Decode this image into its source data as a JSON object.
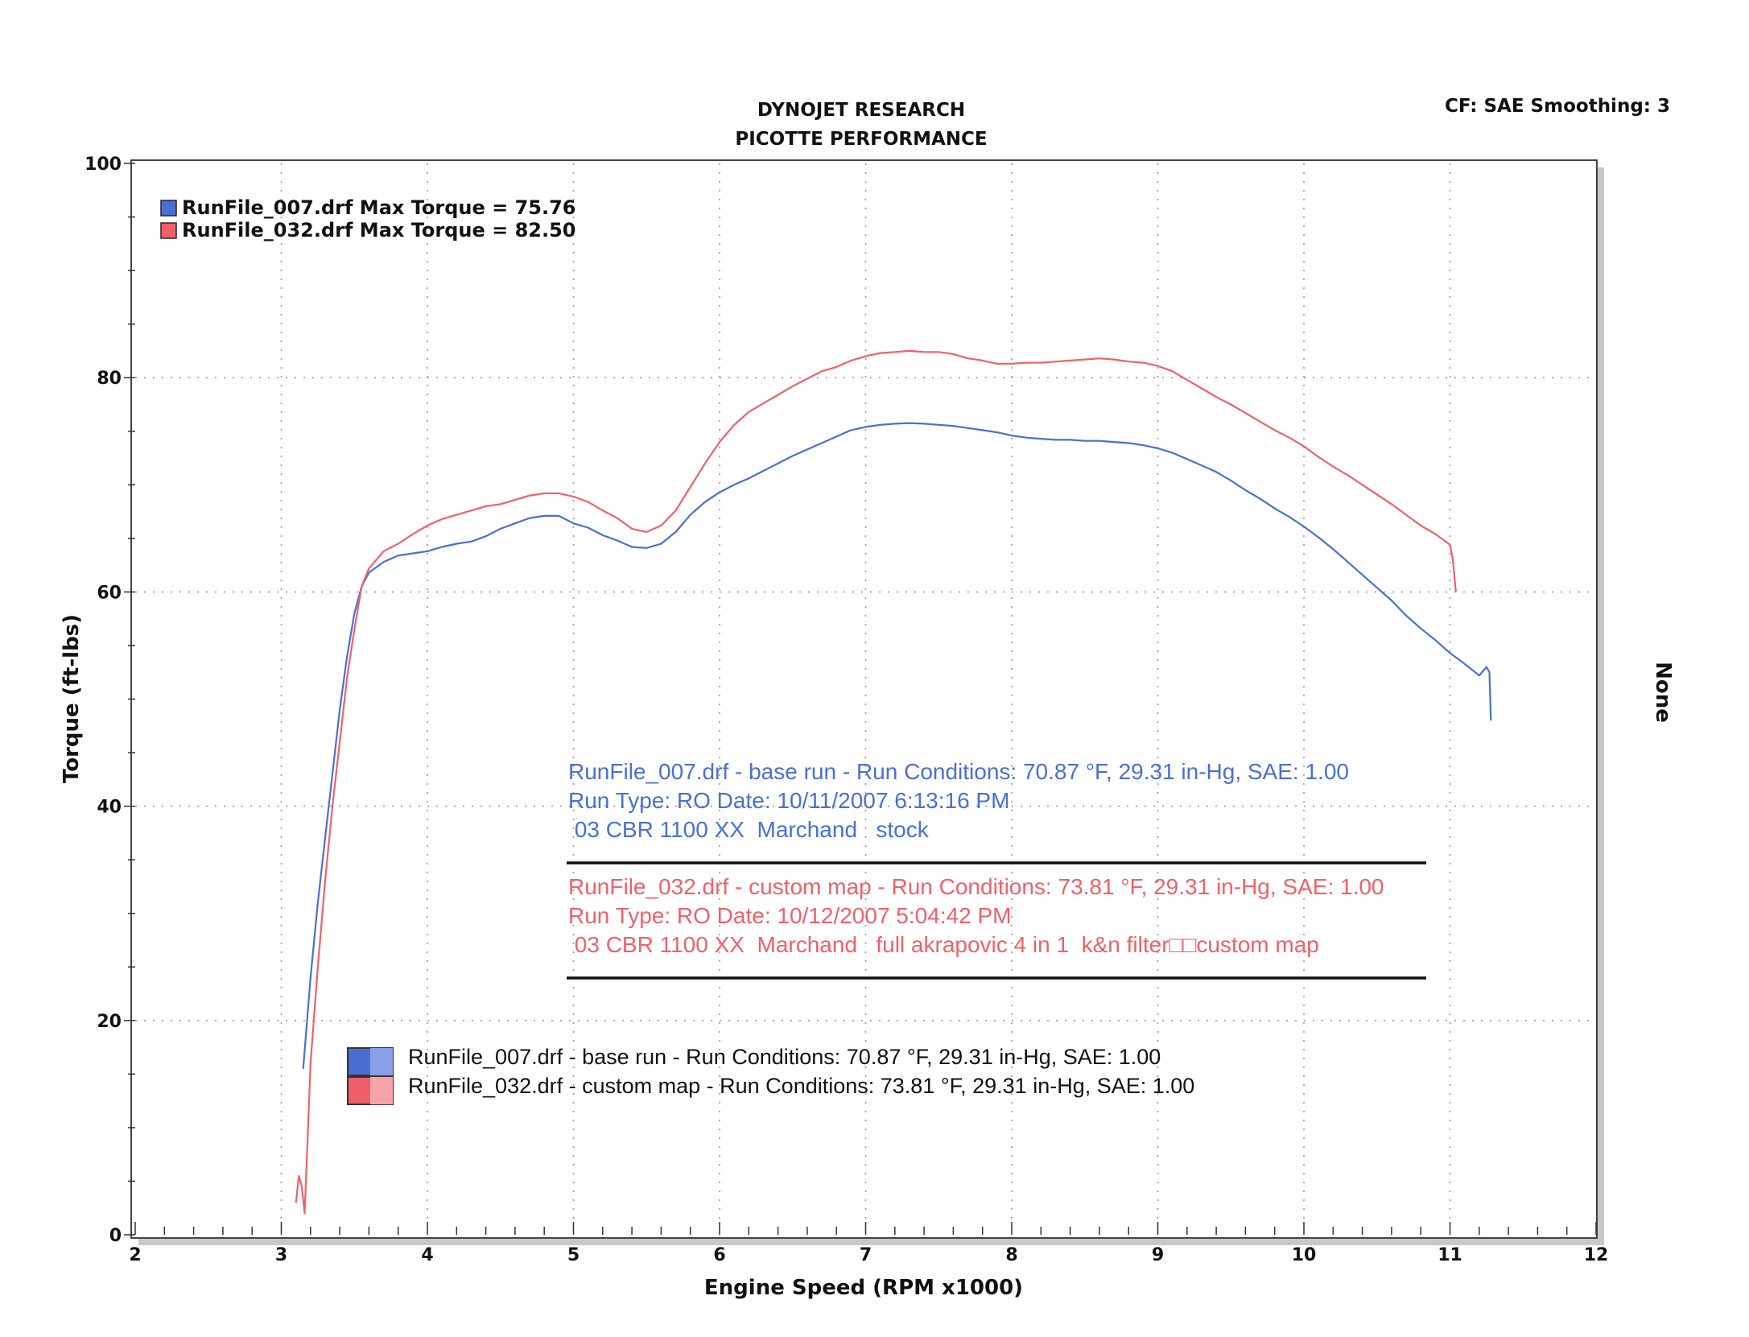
{
  "header": {
    "title_line1": "DYNOJET RESEARCH",
    "title_line2": "PICOTTE PERFORMANCE",
    "settings": "CF: SAE  Smoothing: 3",
    "right_axis_label": "None"
  },
  "colors": {
    "run007": "#4a6fd4",
    "run032": "#f0606a",
    "grid": "#9a9a9a"
  },
  "legend_top": [
    {
      "text": "RunFile_007.drf Max Torque = 75.76",
      "color": "#4a6fd4"
    },
    {
      "text": "RunFile_032.drf Max Torque = 82.50",
      "color": "#f0606a"
    }
  ],
  "annotation": {
    "run007": [
      "RunFile_007.drf - base run  -  Run Conditions: 70.87 °F, 29.31 in-Hg, SAE: 1.00",
      "Run Type: RO  Date: 10/11/2007 6:13:16 PM",
      " 03 CBR 1100 XX  Marchand   stock"
    ],
    "run032": [
      "RunFile_032.drf - custom map  -  Run Conditions: 73.81 °F, 29.31 in-Hg, SAE: 1.00",
      "Run Type: RO  Date: 10/12/2007 5:04:42 PM",
      " 03 CBR 1100 XX  Marchand   full akrapovic 4 in 1  k&n filter□□custom map"
    ]
  },
  "legend_bottom": [
    "RunFile_007.drf - base run  -  Run Conditions: 70.87 °F, 29.31 in-Hg, SAE: 1.00",
    "RunFile_032.drf - custom map  -  Run Conditions: 73.81 °F, 29.31 in-Hg, SAE: 1.00"
  ],
  "chart_data": {
    "type": "line",
    "xlabel": "Engine Speed (RPM x1000)",
    "ylabel": "Torque (ft-lbs)",
    "xlim": [
      2,
      12
    ],
    "ylim": [
      0,
      100
    ],
    "xticks": [
      "2",
      "3",
      "4",
      "5",
      "6",
      "7",
      "8",
      "9",
      "10",
      "11",
      "12"
    ],
    "yticks": [
      "0",
      "20",
      "40",
      "60",
      "80",
      "100"
    ],
    "grid": true,
    "legend_position": "top-left",
    "series": [
      {
        "name": "RunFile_007.drf",
        "color": "#4a6fd4",
        "points": [
          [
            3.15,
            15.5
          ],
          [
            3.2,
            24
          ],
          [
            3.25,
            31
          ],
          [
            3.3,
            37
          ],
          [
            3.35,
            43
          ],
          [
            3.4,
            49
          ],
          [
            3.45,
            54
          ],
          [
            3.5,
            58
          ],
          [
            3.55,
            60.5
          ],
          [
            3.6,
            61.8
          ],
          [
            3.7,
            62.8
          ],
          [
            3.8,
            63.4
          ],
          [
            3.9,
            63.6
          ],
          [
            4.0,
            63.8
          ],
          [
            4.1,
            64.2
          ],
          [
            4.2,
            64.5
          ],
          [
            4.3,
            64.7
          ],
          [
            4.4,
            65.2
          ],
          [
            4.5,
            65.9
          ],
          [
            4.6,
            66.4
          ],
          [
            4.7,
            66.9
          ],
          [
            4.8,
            67.1
          ],
          [
            4.9,
            67.1
          ],
          [
            5.0,
            66.4
          ],
          [
            5.1,
            66.0
          ],
          [
            5.2,
            65.3
          ],
          [
            5.3,
            64.8
          ],
          [
            5.4,
            64.2
          ],
          [
            5.5,
            64.1
          ],
          [
            5.6,
            64.5
          ],
          [
            5.7,
            65.6
          ],
          [
            5.8,
            67.2
          ],
          [
            5.9,
            68.4
          ],
          [
            6.0,
            69.3
          ],
          [
            6.1,
            70.0
          ],
          [
            6.2,
            70.6
          ],
          [
            6.3,
            71.3
          ],
          [
            6.4,
            72.0
          ],
          [
            6.5,
            72.7
          ],
          [
            6.6,
            73.3
          ],
          [
            6.7,
            73.9
          ],
          [
            6.8,
            74.5
          ],
          [
            6.9,
            75.1
          ],
          [
            7.0,
            75.4
          ],
          [
            7.1,
            75.6
          ],
          [
            7.2,
            75.7
          ],
          [
            7.3,
            75.76
          ],
          [
            7.4,
            75.7
          ],
          [
            7.5,
            75.6
          ],
          [
            7.6,
            75.5
          ],
          [
            7.7,
            75.3
          ],
          [
            7.8,
            75.1
          ],
          [
            7.9,
            74.9
          ],
          [
            8.0,
            74.6
          ],
          [
            8.1,
            74.4
          ],
          [
            8.2,
            74.3
          ],
          [
            8.3,
            74.2
          ],
          [
            8.4,
            74.2
          ],
          [
            8.5,
            74.1
          ],
          [
            8.6,
            74.1
          ],
          [
            8.7,
            74.0
          ],
          [
            8.8,
            73.9
          ],
          [
            8.9,
            73.7
          ],
          [
            9.0,
            73.4
          ],
          [
            9.1,
            73.0
          ],
          [
            9.2,
            72.4
          ],
          [
            9.3,
            71.8
          ],
          [
            9.4,
            71.2
          ],
          [
            9.5,
            70.4
          ],
          [
            9.6,
            69.5
          ],
          [
            9.7,
            68.7
          ],
          [
            9.8,
            67.8
          ],
          [
            9.9,
            67.0
          ],
          [
            10.0,
            66.1
          ],
          [
            10.1,
            65.1
          ],
          [
            10.2,
            64.0
          ],
          [
            10.3,
            62.8
          ],
          [
            10.4,
            61.6
          ],
          [
            10.5,
            60.4
          ],
          [
            10.6,
            59.2
          ],
          [
            10.7,
            57.8
          ],
          [
            10.8,
            56.6
          ],
          [
            10.9,
            55.5
          ],
          [
            11.0,
            54.3
          ],
          [
            11.1,
            53.3
          ],
          [
            11.2,
            52.2
          ],
          [
            11.25,
            53.0
          ],
          [
            11.27,
            52.5
          ],
          [
            11.28,
            48.0
          ]
        ]
      },
      {
        "name": "RunFile_032.drf",
        "color": "#f0606a",
        "points": [
          [
            3.1,
            3.0
          ],
          [
            3.12,
            5.5
          ],
          [
            3.14,
            4.5
          ],
          [
            3.16,
            2.0
          ],
          [
            3.18,
            9.0
          ],
          [
            3.2,
            16
          ],
          [
            3.25,
            25
          ],
          [
            3.3,
            33
          ],
          [
            3.35,
            40
          ],
          [
            3.4,
            46
          ],
          [
            3.45,
            52
          ],
          [
            3.5,
            56.5
          ],
          [
            3.55,
            60.5
          ],
          [
            3.6,
            62.2
          ],
          [
            3.7,
            63.8
          ],
          [
            3.8,
            64.5
          ],
          [
            3.9,
            65.4
          ],
          [
            4.0,
            66.2
          ],
          [
            4.1,
            66.8
          ],
          [
            4.2,
            67.2
          ],
          [
            4.3,
            67.6
          ],
          [
            4.4,
            68.0
          ],
          [
            4.5,
            68.2
          ],
          [
            4.6,
            68.6
          ],
          [
            4.7,
            69.0
          ],
          [
            4.8,
            69.2
          ],
          [
            4.9,
            69.2
          ],
          [
            5.0,
            68.9
          ],
          [
            5.1,
            68.4
          ],
          [
            5.2,
            67.6
          ],
          [
            5.3,
            66.9
          ],
          [
            5.4,
            65.9
          ],
          [
            5.5,
            65.6
          ],
          [
            5.6,
            66.2
          ],
          [
            5.7,
            67.6
          ],
          [
            5.8,
            69.8
          ],
          [
            5.9,
            72.0
          ],
          [
            6.0,
            74.0
          ],
          [
            6.1,
            75.6
          ],
          [
            6.2,
            76.8
          ],
          [
            6.3,
            77.6
          ],
          [
            6.4,
            78.4
          ],
          [
            6.5,
            79.2
          ],
          [
            6.6,
            79.9
          ],
          [
            6.7,
            80.6
          ],
          [
            6.8,
            81.0
          ],
          [
            6.9,
            81.6
          ],
          [
            7.0,
            82.0
          ],
          [
            7.1,
            82.3
          ],
          [
            7.2,
            82.4
          ],
          [
            7.3,
            82.5
          ],
          [
            7.4,
            82.4
          ],
          [
            7.5,
            82.4
          ],
          [
            7.6,
            82.2
          ],
          [
            7.7,
            81.8
          ],
          [
            7.8,
            81.6
          ],
          [
            7.9,
            81.3
          ],
          [
            8.0,
            81.3
          ],
          [
            8.1,
            81.4
          ],
          [
            8.2,
            81.4
          ],
          [
            8.3,
            81.5
          ],
          [
            8.4,
            81.6
          ],
          [
            8.5,
            81.7
          ],
          [
            8.6,
            81.8
          ],
          [
            8.7,
            81.7
          ],
          [
            8.8,
            81.5
          ],
          [
            8.9,
            81.4
          ],
          [
            9.0,
            81.1
          ],
          [
            9.1,
            80.6
          ],
          [
            9.2,
            79.8
          ],
          [
            9.3,
            79.0
          ],
          [
            9.4,
            78.2
          ],
          [
            9.5,
            77.5
          ],
          [
            9.6,
            76.7
          ],
          [
            9.7,
            75.9
          ],
          [
            9.8,
            75.1
          ],
          [
            9.9,
            74.4
          ],
          [
            10.0,
            73.6
          ],
          [
            10.1,
            72.6
          ],
          [
            10.2,
            71.7
          ],
          [
            10.3,
            70.9
          ],
          [
            10.4,
            70.0
          ],
          [
            10.5,
            69.1
          ],
          [
            10.6,
            68.2
          ],
          [
            10.7,
            67.2
          ],
          [
            10.8,
            66.2
          ],
          [
            10.9,
            65.4
          ],
          [
            11.0,
            64.4
          ],
          [
            11.02,
            63.0
          ],
          [
            11.04,
            60.0
          ]
        ]
      }
    ]
  }
}
